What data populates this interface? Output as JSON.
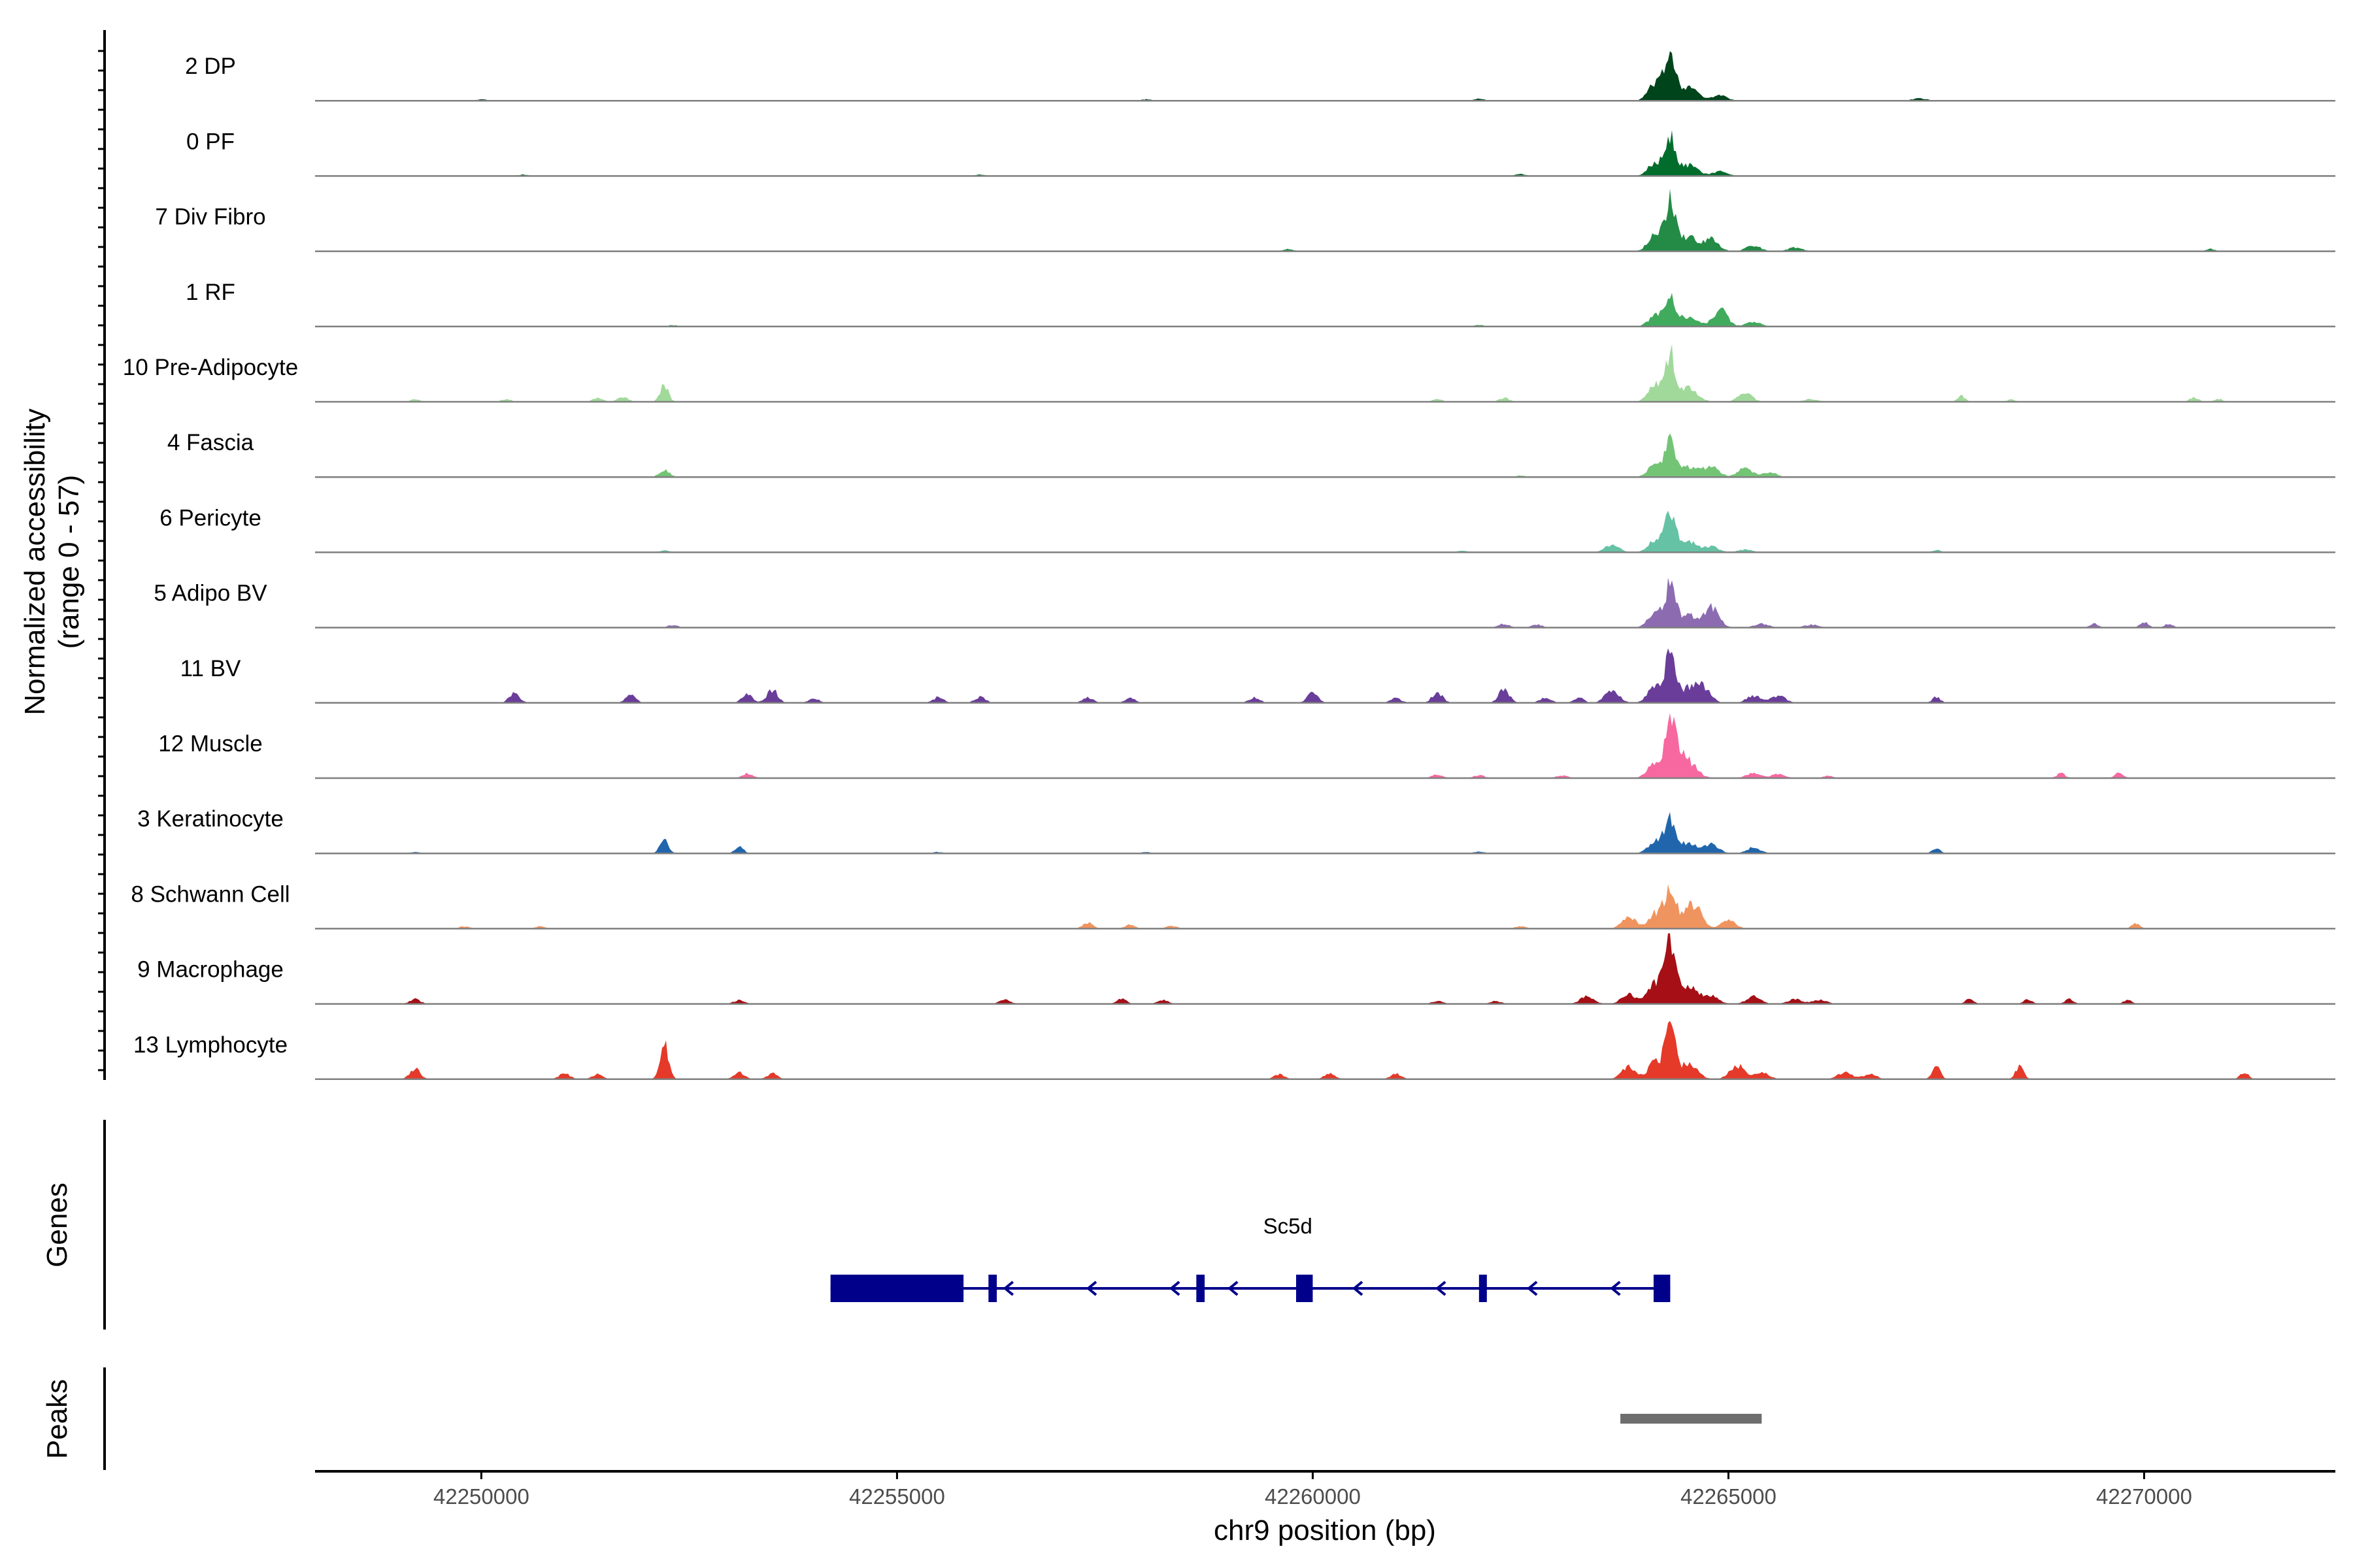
{
  "chart_data": {
    "type": "area",
    "title": "",
    "ylabel_line1": "Normalized accessibility",
    "ylabel_line2": "(range 0 - 57)",
    "ylim": [
      0,
      57
    ],
    "xlabel": "chr9 position (bp)",
    "xlim": [
      42248000,
      42272300
    ],
    "xticks": [
      42250000,
      42255000,
      42260000,
      42265000,
      42270000
    ],
    "tracks": [
      {
        "name": "2 DP",
        "color": "#00441b",
        "peak_height": 1.0,
        "bg": [
          [
            42250000,
            0.03
          ],
          [
            42258000,
            0.03
          ],
          [
            42262000,
            0.04
          ]
        ],
        "side": [
          [
            42264900,
            0.12
          ],
          [
            42267300,
            0.05
          ]
        ],
        "extra": []
      },
      {
        "name": "0 PF",
        "color": "#006d2c",
        "peak_height": 0.78,
        "bg": [
          [
            42250500,
            0.03
          ],
          [
            42256000,
            0.03
          ],
          [
            42262500,
            0.04
          ]
        ],
        "side": [
          [
            42264900,
            0.1
          ]
        ],
        "extra": []
      },
      {
        "name": "7 Div Fibro",
        "color": "#238b45",
        "peak_height": 1.0,
        "bg": [
          [
            42259700,
            0.05
          ]
        ],
        "side": [
          [
            42264800,
            0.25
          ],
          [
            42265300,
            0.12
          ],
          [
            42265800,
            0.08
          ]
        ],
        "extra": [
          [
            42270800,
            0.05
          ]
        ]
      },
      {
        "name": "1 RF",
        "color": "#41ab5d",
        "peak_height": 0.62,
        "bg": [
          [
            42252300,
            0.03
          ],
          [
            42262000,
            0.03
          ]
        ],
        "side": [
          [
            42264900,
            0.35
          ],
          [
            42265300,
            0.1
          ]
        ],
        "extra": []
      },
      {
        "name": "10 Pre-Adipocyte",
        "color": "#a1d99b",
        "peak_height": 0.95,
        "bg": [
          [
            42249200,
            0.05
          ],
          [
            42250300,
            0.05
          ],
          [
            42251400,
            0.08
          ],
          [
            42251700,
            0.1
          ],
          [
            42261500,
            0.05
          ],
          [
            42262300,
            0.08
          ]
        ],
        "side": [
          [
            42265200,
            0.18
          ],
          [
            42266000,
            0.06
          ]
        ],
        "extra": [
          [
            42252200,
            0.35
          ],
          [
            42267800,
            0.12
          ],
          [
            42268400,
            0.05
          ],
          [
            42270600,
            0.1
          ],
          [
            42270900,
            0.06
          ]
        ]
      },
      {
        "name": "4 Fascia",
        "color": "#74c476",
        "peak_height": 0.72,
        "bg": [
          [
            42252200,
            0.15
          ],
          [
            42262500,
            0.03
          ]
        ],
        "side": [
          [
            42264800,
            0.25
          ],
          [
            42265200,
            0.2
          ],
          [
            42265500,
            0.1
          ]
        ],
        "extra": []
      },
      {
        "name": "6 Pericyte",
        "color": "#66c2a4",
        "peak_height": 0.75,
        "bg": [
          [
            42252200,
            0.04
          ],
          [
            42261800,
            0.03
          ]
        ],
        "side": [
          [
            42263600,
            0.15
          ],
          [
            42264800,
            0.12
          ],
          [
            42265200,
            0.06
          ]
        ],
        "extra": [
          [
            42267500,
            0.05
          ]
        ]
      },
      {
        "name": "5 Adipo BV",
        "color": "#8c6bb1",
        "peak_height": 0.85,
        "bg": [
          [
            42252300,
            0.05
          ],
          [
            42262300,
            0.08
          ],
          [
            42262700,
            0.06
          ]
        ],
        "side": [
          [
            42264800,
            0.42
          ],
          [
            42265400,
            0.08
          ],
          [
            42266000,
            0.06
          ]
        ],
        "extra": [
          [
            42269400,
            0.08
          ],
          [
            42270000,
            0.12
          ],
          [
            42270300,
            0.08
          ]
        ]
      },
      {
        "name": "11 BV",
        "color": "#6a3d9a",
        "peak_height": 0.98,
        "bg": [
          [
            42250400,
            0.2
          ],
          [
            42251800,
            0.15
          ],
          [
            42253200,
            0.18
          ],
          [
            42253500,
            0.28
          ],
          [
            42254000,
            0.1
          ],
          [
            42255500,
            0.12
          ],
          [
            42256000,
            0.12
          ],
          [
            42257300,
            0.12
          ],
          [
            42257800,
            0.1
          ],
          [
            42259300,
            0.12
          ],
          [
            42260000,
            0.2
          ],
          [
            42261000,
            0.1
          ],
          [
            42261500,
            0.22
          ],
          [
            42262300,
            0.28
          ],
          [
            42262800,
            0.12
          ],
          [
            42263200,
            0.1
          ]
        ],
        "side": [
          [
            42263600,
            0.25
          ],
          [
            42264700,
            0.3
          ],
          [
            42265300,
            0.15
          ],
          [
            42265600,
            0.15
          ]
        ],
        "extra": [
          [
            42267500,
            0.12
          ]
        ]
      },
      {
        "name": "12 Muscle",
        "color": "#f768a1",
        "peak_height": 1.0,
        "bg": [
          [
            42253200,
            0.1
          ],
          [
            42261500,
            0.08
          ],
          [
            42262000,
            0.06
          ],
          [
            42263000,
            0.06
          ]
        ],
        "side": [
          [
            42264400,
            0.25
          ],
          [
            42265300,
            0.1
          ],
          [
            42265600,
            0.08
          ]
        ],
        "extra": [
          [
            42266200,
            0.06
          ],
          [
            42269000,
            0.1
          ],
          [
            42269700,
            0.12
          ]
        ]
      },
      {
        "name": "3 Keratinocyte",
        "color": "#2166ac",
        "peak_height": 0.72,
        "bg": [
          [
            42249200,
            0.03
          ],
          [
            42255500,
            0.03
          ],
          [
            42258000,
            0.03
          ],
          [
            42262000,
            0.04
          ]
        ],
        "side": [
          [
            42264800,
            0.18
          ],
          [
            42265300,
            0.12
          ]
        ],
        "extra": [
          [
            42252200,
            0.33
          ],
          [
            42253100,
            0.15
          ],
          [
            42267500,
            0.1
          ]
        ]
      },
      {
        "name": "8 Schwann Cell",
        "color": "#f0945f",
        "peak_height": 0.92,
        "bg": [
          [
            42249800,
            0.05
          ],
          [
            42250700,
            0.05
          ],
          [
            42257300,
            0.12
          ],
          [
            42257800,
            0.08
          ],
          [
            42258300,
            0.06
          ],
          [
            42262500,
            0.05
          ]
        ],
        "side": [
          [
            42263800,
            0.25
          ],
          [
            42264600,
            0.3
          ],
          [
            42265000,
            0.18
          ]
        ],
        "extra": [
          [
            42269900,
            0.12
          ]
        ]
      },
      {
        "name": "9 Macrophage",
        "color": "#a50f15",
        "peak_height": 1.3,
        "bg": [
          [
            42249200,
            0.1
          ],
          [
            42253100,
            0.08
          ],
          [
            42256300,
            0.1
          ],
          [
            42257700,
            0.1
          ],
          [
            42258200,
            0.08
          ],
          [
            42261500,
            0.06
          ],
          [
            42262200,
            0.06
          ]
        ],
        "side": [
          [
            42263300,
            0.15
          ],
          [
            42263800,
            0.2
          ],
          [
            42264800,
            0.18
          ],
          [
            42265300,
            0.15
          ],
          [
            42265800,
            0.1
          ],
          [
            42266100,
            0.08
          ]
        ],
        "extra": [
          [
            42267900,
            0.1
          ],
          [
            42268600,
            0.1
          ],
          [
            42269100,
            0.1
          ],
          [
            42269800,
            0.08
          ]
        ]
      },
      {
        "name": "13 Lymphocyte",
        "color": "#e53929",
        "peak_height": 1.0,
        "bg": [
          [
            42249200,
            0.22
          ],
          [
            42251000,
            0.12
          ],
          [
            42251400,
            0.1
          ],
          [
            42253100,
            0.15
          ],
          [
            42253500,
            0.12
          ],
          [
            42259600,
            0.1
          ],
          [
            42260200,
            0.12
          ],
          [
            42261000,
            0.12
          ]
        ],
        "side": [
          [
            42263800,
            0.25
          ],
          [
            42265100,
            0.3
          ],
          [
            42265400,
            0.15
          ],
          [
            42266400,
            0.15
          ],
          [
            42266700,
            0.1
          ]
        ],
        "extra": [
          [
            42252200,
            0.8
          ],
          [
            42267500,
            0.25
          ],
          [
            42268500,
            0.25
          ],
          [
            42271200,
            0.15
          ]
        ]
      }
    ],
    "peak_center": 42264300,
    "gene": {
      "name": "Sc5d",
      "strand": "-",
      "start": 42254200,
      "end": 42264300,
      "exons": [
        [
          42254200,
          42255800
        ],
        [
          42256100,
          42256200
        ],
        [
          42258600,
          42258700
        ],
        [
          42259800,
          42260000
        ],
        [
          42262000,
          42262080
        ],
        [
          42264100,
          42264300
        ]
      ]
    },
    "peaks": [
      [
        42263700,
        42265400
      ]
    ],
    "panel_labels": {
      "genes": "Genes",
      "peaks": "Peaks"
    },
    "colors": {
      "baseline": "#7f7f7f",
      "gene": "#00008b",
      "peak": "#6e6e6e",
      "axis": "#000000"
    }
  }
}
